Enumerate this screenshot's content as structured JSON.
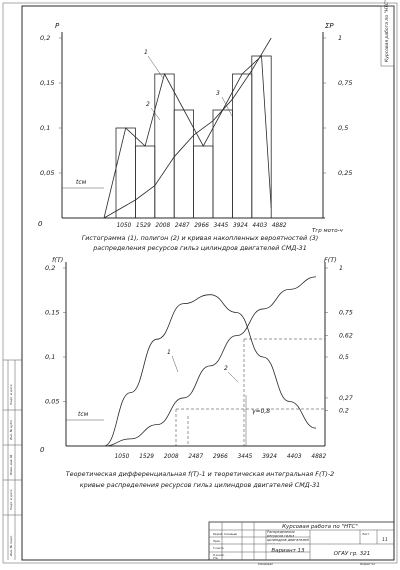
{
  "top_chart": {
    "left_axis_label": "P",
    "right_axis_label": "ΣP",
    "left_ticks": [
      "0,2",
      "0,15",
      "0,1",
      "0,05"
    ],
    "right_ticks": [
      "1",
      "0,75",
      "0,5",
      "0,25"
    ],
    "zero_label": "0",
    "x_ticks": [
      "1050",
      "1529",
      "2008",
      "2487",
      "2966",
      "3445",
      "3924",
      "4403",
      "4882"
    ],
    "x_axis_label": "Tгр мото-ч",
    "tcm_label": "tсм",
    "curve_labels": [
      "1",
      "2",
      "3"
    ],
    "caption_line1": "Гистограмма (1), полигон (2) и кривая накопленных вероятностей (3)",
    "caption_line2": "распределения ресурсов гильз цилиндров двигателей СМД-31"
  },
  "bottom_chart": {
    "left_axis_label": "f(T)",
    "right_axis_label": "F(T)",
    "left_ticks": [
      "0,2",
      "0,15",
      "0,1",
      "0,05"
    ],
    "right_ticks": [
      "1",
      "0,75",
      "0,62",
      "0,5",
      "0,27",
      "0,2"
    ],
    "zero_label": "0",
    "x_ticks": [
      "1050",
      "1529",
      "2008",
      "2487",
      "2966",
      "3445",
      "3924",
      "4403",
      "4882"
    ],
    "tcm_label": "tсм",
    "curve_labels": [
      "1",
      "2"
    ],
    "gamma_label": "γ=0,8",
    "caption_line1": "Теоретическая дифференциальная f(T)-1 и теоретическая интегральная F(T)-2",
    "caption_line2": "кривые распределения ресурсов гильз цилиндров двигателей СМД-31"
  },
  "chart_data": [
    {
      "type": "bar",
      "categories": [
        "1050–1529",
        "1529–2008",
        "2008–2487",
        "2487–2966",
        "2966–3445",
        "3445–3924",
        "3924–4403",
        "4403–4882"
      ],
      "series": [
        {
          "name": "1",
          "values": [
            0.1,
            0.08,
            0.16,
            0.12,
            0.08,
            0.12,
            0.16,
            0.18
          ]
        },
        {
          "name": "2",
          "values": [
            0.1,
            0.08,
            0.16,
            0.12,
            0.08,
            0.12,
            0.16,
            0.18
          ]
        },
        {
          "name": "3",
          "values": [
            0.1,
            0.18,
            0.34,
            0.46,
            0.54,
            0.66,
            0.82,
            1.0
          ]
        }
      ],
      "ylim": [
        0,
        0.2
      ],
      "ylim_right": [
        0,
        1
      ]
    },
    {
      "type": "line",
      "x": [
        1050,
        1529,
        2008,
        2487,
        2966,
        3445,
        3924,
        4403,
        4882
      ],
      "series": [
        {
          "name": "1",
          "values": [
            0.0,
            0.06,
            0.12,
            0.16,
            0.17,
            0.15,
            0.1,
            0.05,
            0.02
          ]
        },
        {
          "name": "2",
          "values": [
            0.0,
            0.04,
            0.12,
            0.27,
            0.45,
            0.62,
            0.77,
            0.88,
            0.95
          ]
        }
      ],
      "ylim": [
        0,
        0.2
      ],
      "ylim_right": [
        0,
        1
      ]
    }
  ],
  "title_block": {
    "vertical_stamp": "Курсовая работа по \"НТС\"",
    "work_title": "Курсовая работа по \"НТС\"",
    "description": "Распределения ресурсов гильз цилиндров двигателей СМД-31",
    "variant": "Вариант 13",
    "group": "ОГАУ гр. 321",
    "sheet_label": "Лист",
    "sheet_no": "11",
    "roles": [
      "Разраб.",
      "Пров.",
      "Т.контр.",
      "Н.контр.",
      "Утв."
    ],
    "role_name": "Соловьев",
    "copy_label": "Копировал",
    "format_label": "Формат А4",
    "margin_labels": [
      "Инв. № подл.",
      "Подп. и дата",
      "Взам. инв. №",
      "Инв. № дубл.",
      "Подп. и дата"
    ]
  }
}
